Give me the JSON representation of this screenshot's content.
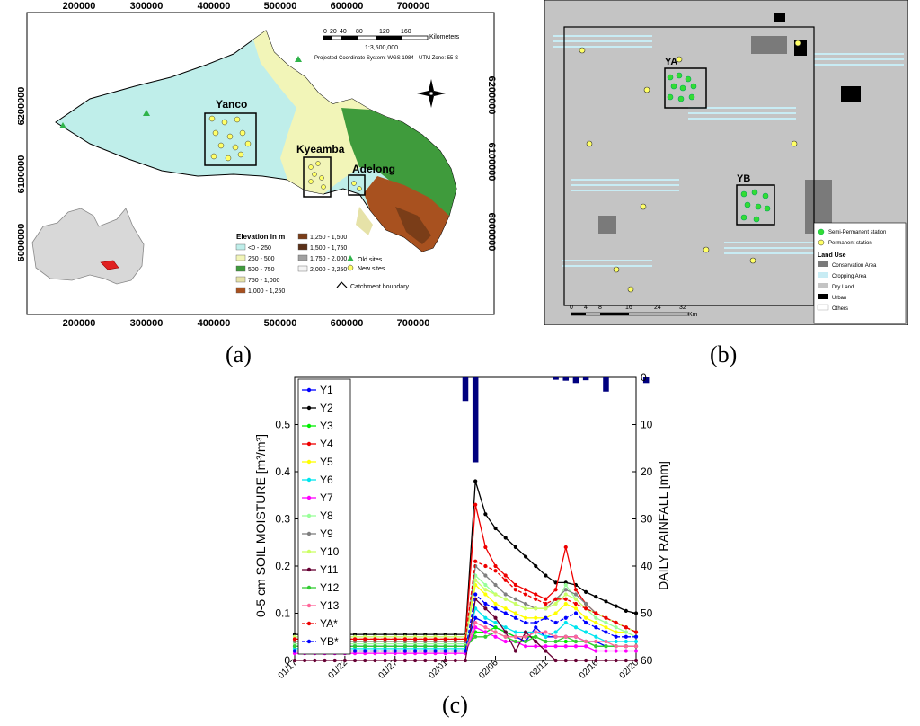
{
  "panels": {
    "a": "(a)",
    "b": "(b)",
    "c": "(c)"
  },
  "map_a": {
    "x_ticks": [
      "200000",
      "300000",
      "400000",
      "500000",
      "600000",
      "700000"
    ],
    "y_ticks_left": [
      "6200000",
      "6100000",
      "6000000"
    ],
    "y_ticks_right": [
      "6200000",
      "6100000",
      "6000000"
    ],
    "sites": [
      "Yanco",
      "Kyeamba",
      "Adelong"
    ],
    "scale_title": "Kilometers",
    "scale_ticks": [
      "0",
      "20",
      "40",
      "80",
      "120",
      "160"
    ],
    "scale_ratio": "1:3,500,000",
    "projection": "Projected Coordinate System: WGS 1984 - UTM Zone: 55 S",
    "legend_title": "Elevation in m",
    "legend_items": [
      {
        "label": "<0 - 250",
        "color": "#bfeeea"
      },
      {
        "label": "250 - 500",
        "color": "#f2f5b8"
      },
      {
        "label": "500 - 750",
        "color": "#3f9b3c"
      },
      {
        "label": "750 - 1,000",
        "color": "#e6e2a8"
      },
      {
        "label": "1,000 - 1,250",
        "color": "#a8511f"
      },
      {
        "label": "1,250 - 1,500",
        "color": "#7a3d18"
      },
      {
        "label": "1,500 - 1,750",
        "color": "#5a3018"
      },
      {
        "label": "1,750 - 2,000",
        "color": "#a0a0a0"
      },
      {
        "label": "2,000 - 2,250",
        "color": "#f4f4f4"
      }
    ],
    "old_sites": "Old sites",
    "new_sites": "New sites",
    "catchment": "Catchment boundary"
  },
  "map_b": {
    "labels": [
      "YA",
      "YB"
    ],
    "scale_ticks": [
      "0",
      "4",
      "8",
      "16",
      "24",
      "32"
    ],
    "scale_unit": "Km",
    "legend_station": [
      "Semi-Permanent station",
      "Permanent station"
    ],
    "legend_title": "Land Use",
    "legend_items": [
      {
        "label": "Conservation Area",
        "color": "#7a7a7a"
      },
      {
        "label": "Cropping Area",
        "color": "#c8ecf4"
      },
      {
        "label": "Dry Land",
        "color": "#c4c4c4"
      },
      {
        "label": "Urban",
        "color": "#000000"
      },
      {
        "label": "Others",
        "color": "#ffffff"
      }
    ]
  },
  "chart_data": {
    "type": "line",
    "ylabel": "0-5 cm SOIL MOISTURE [m³/m³]",
    "y2label": "DAILY RAINFALL [mm]",
    "ylim": [
      0,
      0.6
    ],
    "y2lim": [
      0,
      60
    ],
    "y2_reversed": true,
    "y_ticks": [
      "0",
      "0.1",
      "0.2",
      "0.3",
      "0.4",
      "0.5"
    ],
    "y2_ticks": [
      "0",
      "10",
      "20",
      "30",
      "40",
      "50",
      "60"
    ],
    "x_ticks": [
      "01/17",
      "01/22",
      "01/27",
      "02/01",
      "02/06",
      "02/11",
      "02/16",
      "02/20"
    ],
    "x_tick_days": [
      0,
      5,
      10,
      15,
      20,
      25,
      30,
      34
    ],
    "x_range_days": [
      0,
      34
    ],
    "legend_placement": "top-left",
    "rainfall": {
      "days": [
        17,
        18,
        26,
        27,
        28,
        29,
        31,
        35
      ],
      "values": [
        5,
        18,
        0.5,
        0.7,
        1.2,
        0.6,
        3,
        1.2
      ],
      "color": "#00007f"
    },
    "series": [
      {
        "name": "Y1",
        "color": "#0000ff",
        "style": "solid",
        "values": [
          0.03,
          0.03,
          0.03,
          0.03,
          0.03,
          0.03,
          0.03,
          0.03,
          0.03,
          0.03,
          0.03,
          0.03,
          0.03,
          0.03,
          0.03,
          0.03,
          0.03,
          0.03,
          0.09,
          0.08,
          0.07,
          0.06,
          0.05,
          0.04,
          0.07,
          0.05,
          0.05,
          0.05,
          0.05,
          0.04,
          0.04,
          0.03,
          0.03,
          0.03,
          0.03
        ]
      },
      {
        "name": "Y2",
        "color": "#000000",
        "style": "solid",
        "values": [
          0.055,
          0.055,
          0.055,
          0.055,
          0.055,
          0.055,
          0.055,
          0.055,
          0.055,
          0.055,
          0.055,
          0.055,
          0.055,
          0.055,
          0.055,
          0.055,
          0.055,
          0.055,
          0.38,
          0.31,
          0.28,
          0.26,
          0.24,
          0.22,
          0.2,
          0.18,
          0.165,
          0.165,
          0.16,
          0.145,
          0.135,
          0.125,
          0.115,
          0.105,
          0.1
        ]
      },
      {
        "name": "Y3",
        "color": "#00ee00",
        "style": "solid",
        "values": [
          0.02,
          0.02,
          0.02,
          0.02,
          0.02,
          0.02,
          0.02,
          0.02,
          0.02,
          0.02,
          0.02,
          0.02,
          0.02,
          0.02,
          0.02,
          0.02,
          0.02,
          0.02,
          0.06,
          0.06,
          0.07,
          0.06,
          0.05,
          0.05,
          0.05,
          0.04,
          0.04,
          0.04,
          0.04,
          0.04,
          0.03,
          0.03,
          0.03,
          0.03,
          0.03
        ]
      },
      {
        "name": "Y4",
        "color": "#ee0000",
        "style": "solid",
        "values": [
          0.045,
          0.045,
          0.045,
          0.045,
          0.045,
          0.045,
          0.045,
          0.045,
          0.045,
          0.045,
          0.045,
          0.045,
          0.045,
          0.045,
          0.045,
          0.045,
          0.045,
          0.045,
          0.33,
          0.24,
          0.2,
          0.18,
          0.16,
          0.15,
          0.14,
          0.13,
          0.15,
          0.24,
          0.15,
          0.12,
          0.1,
          0.09,
          0.08,
          0.07,
          0.06
        ]
      },
      {
        "name": "Y5",
        "color": "#ffff00",
        "style": "solid",
        "values": [
          0.04,
          0.04,
          0.04,
          0.04,
          0.04,
          0.04,
          0.04,
          0.04,
          0.04,
          0.04,
          0.04,
          0.04,
          0.04,
          0.04,
          0.04,
          0.04,
          0.04,
          0.04,
          0.16,
          0.14,
          0.12,
          0.11,
          0.1,
          0.09,
          0.09,
          0.09,
          0.1,
          0.12,
          0.11,
          0.09,
          0.08,
          0.07,
          0.06,
          0.06,
          0.05
        ]
      },
      {
        "name": "Y6",
        "color": "#00e5ee",
        "style": "solid",
        "values": [
          0.025,
          0.025,
          0.025,
          0.025,
          0.025,
          0.025,
          0.025,
          0.025,
          0.025,
          0.025,
          0.025,
          0.025,
          0.025,
          0.025,
          0.025,
          0.025,
          0.025,
          0.025,
          0.11,
          0.09,
          0.08,
          0.07,
          0.06,
          0.06,
          0.06,
          0.05,
          0.06,
          0.08,
          0.07,
          0.06,
          0.05,
          0.04,
          0.04,
          0.04,
          0.04
        ]
      },
      {
        "name": "Y7",
        "color": "#ff00ff",
        "style": "solid",
        "values": [
          0.015,
          0.015,
          0.015,
          0.015,
          0.015,
          0.015,
          0.015,
          0.015,
          0.015,
          0.015,
          0.015,
          0.015,
          0.015,
          0.015,
          0.015,
          0.015,
          0.015,
          0.015,
          0.07,
          0.06,
          0.05,
          0.04,
          0.04,
          0.03,
          0.03,
          0.03,
          0.03,
          0.03,
          0.03,
          0.03,
          0.02,
          0.02,
          0.02,
          0.02,
          0.02
        ]
      },
      {
        "name": "Y8",
        "color": "#99ff99",
        "style": "solid",
        "values": [
          0.035,
          0.035,
          0.035,
          0.035,
          0.035,
          0.035,
          0.035,
          0.035,
          0.035,
          0.035,
          0.035,
          0.035,
          0.035,
          0.035,
          0.035,
          0.035,
          0.035,
          0.035,
          0.18,
          0.16,
          0.14,
          0.13,
          0.12,
          0.11,
          0.11,
          0.11,
          0.12,
          0.16,
          0.13,
          0.11,
          0.09,
          0.08,
          0.07,
          0.06,
          0.05
        ]
      },
      {
        "name": "Y9",
        "color": "#808080",
        "style": "solid",
        "values": [
          0.04,
          0.04,
          0.04,
          0.04,
          0.04,
          0.04,
          0.04,
          0.04,
          0.04,
          0.04,
          0.04,
          0.04,
          0.04,
          0.04,
          0.04,
          0.04,
          0.04,
          0.04,
          0.2,
          0.18,
          0.16,
          0.14,
          0.13,
          0.12,
          0.11,
          0.11,
          0.13,
          0.15,
          0.14,
          0.12,
          0.1,
          0.09,
          0.08,
          0.07,
          0.06
        ]
      },
      {
        "name": "Y10",
        "color": "#ccff66",
        "style": "solid",
        "values": [
          0.05,
          0.05,
          0.05,
          0.05,
          0.05,
          0.05,
          0.05,
          0.05,
          0.05,
          0.05,
          0.05,
          0.05,
          0.05,
          0.05,
          0.05,
          0.05,
          0.05,
          0.05,
          0.17,
          0.15,
          0.14,
          0.13,
          0.12,
          0.11,
          0.11,
          0.11,
          0.12,
          0.14,
          0.13,
          0.11,
          0.1,
          0.09,
          0.08,
          0.07,
          0.06
        ]
      },
      {
        "name": "Y11",
        "color": "#660033",
        "style": "solid",
        "values": [
          0.0,
          0.0,
          0.0,
          0.0,
          0.0,
          0.0,
          0.0,
          0.0,
          0.0,
          0.0,
          0.0,
          0.0,
          0.0,
          0.0,
          0.0,
          0.0,
          0.0,
          0.0,
          0.13,
          0.11,
          0.09,
          0.06,
          0.02,
          0.06,
          0.04,
          0.02,
          0.0,
          0.0,
          0.0,
          0.0,
          0.0,
          0.0,
          0.0,
          0.0,
          0.0
        ]
      },
      {
        "name": "Y12",
        "color": "#33cc33",
        "style": "solid",
        "values": [
          0.03,
          0.03,
          0.03,
          0.03,
          0.03,
          0.03,
          0.03,
          0.03,
          0.03,
          0.03,
          0.03,
          0.03,
          0.03,
          0.03,
          0.03,
          0.03,
          0.03,
          0.03,
          0.05,
          0.05,
          0.06,
          0.05,
          0.04,
          0.04,
          0.05,
          0.04,
          0.04,
          0.05,
          0.04,
          0.04,
          0.03,
          0.03,
          0.03,
          0.03,
          0.03
        ]
      },
      {
        "name": "Y13",
        "color": "#ff6699",
        "style": "solid",
        "values": [
          0.02,
          0.02,
          0.02,
          0.02,
          0.02,
          0.02,
          0.02,
          0.02,
          0.02,
          0.02,
          0.02,
          0.02,
          0.02,
          0.02,
          0.02,
          0.02,
          0.02,
          0.02,
          0.08,
          0.07,
          0.06,
          0.05,
          0.05,
          0.05,
          0.06,
          0.06,
          0.05,
          0.05,
          0.05,
          0.04,
          0.04,
          0.04,
          0.03,
          0.03,
          0.03
        ]
      },
      {
        "name": "YA*",
        "color": "#ee0000",
        "style": "dashed",
        "values": [
          0.045,
          0.045,
          0.045,
          0.045,
          0.045,
          0.045,
          0.045,
          0.045,
          0.045,
          0.045,
          0.045,
          0.045,
          0.045,
          0.045,
          0.045,
          0.045,
          0.045,
          0.045,
          0.21,
          0.2,
          0.19,
          0.17,
          0.15,
          0.14,
          0.13,
          0.12,
          0.13,
          0.13,
          0.12,
          0.11,
          0.1,
          0.09,
          0.08,
          0.07,
          0.06
        ]
      },
      {
        "name": "YB*",
        "color": "#0000ff",
        "style": "dashed",
        "values": [
          0.02,
          0.02,
          0.02,
          0.02,
          0.02,
          0.02,
          0.02,
          0.02,
          0.02,
          0.02,
          0.02,
          0.02,
          0.02,
          0.02,
          0.02,
          0.02,
          0.02,
          0.02,
          0.14,
          0.12,
          0.11,
          0.1,
          0.09,
          0.08,
          0.08,
          0.09,
          0.08,
          0.09,
          0.1,
          0.08,
          0.07,
          0.06,
          0.05,
          0.05,
          0.05
        ]
      }
    ]
  }
}
